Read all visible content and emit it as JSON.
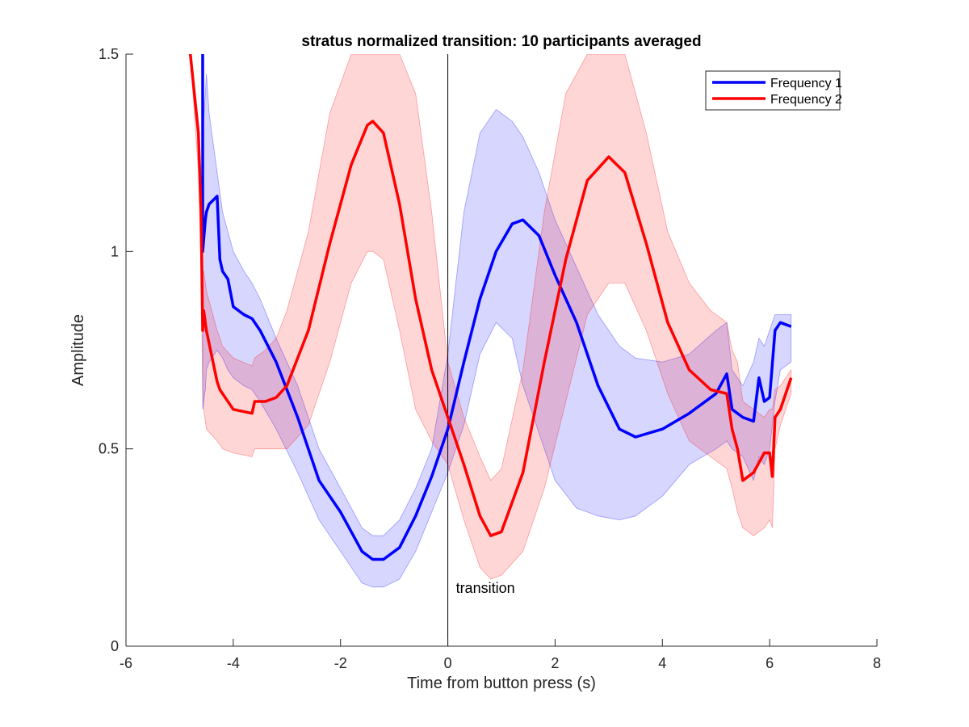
{
  "chart_data": {
    "type": "line",
    "title": "stratus normalized transition: 10 participants averaged",
    "xlabel": "Time from button press (s)",
    "ylabel": "Amplitude",
    "xlim": [
      -6,
      8
    ],
    "ylim": [
      0,
      1.5
    ],
    "xticks": [
      "-6",
      "-4",
      "-2",
      "0",
      "2",
      "4",
      "6",
      "8"
    ],
    "yticks": [
      "0",
      "0.5",
      "1",
      "1.5"
    ],
    "grid": false,
    "legend_position": "top-right",
    "annotation": {
      "text": "transition",
      "x": 0
    },
    "series": [
      {
        "name": "Frequency 1",
        "color": "#0000ff",
        "band_color": "#0000ff",
        "x": [
          -4.57,
          -4.57,
          -4.52,
          -4.5,
          -4.45,
          -4.3,
          -4.25,
          -4.2,
          -4.1,
          -4.0,
          -3.8,
          -3.65,
          -3.5,
          -3.2,
          -2.8,
          -2.4,
          -2.0,
          -1.6,
          -1.4,
          -1.2,
          -0.9,
          -0.6,
          -0.3,
          0.0,
          0.3,
          0.6,
          0.9,
          1.2,
          1.4,
          1.7,
          2.0,
          2.4,
          2.8,
          3.2,
          3.5,
          4.0,
          4.5,
          5.0,
          5.2,
          5.3,
          5.5,
          5.7,
          5.8,
          5.9,
          6.0,
          6.1,
          6.2,
          6.4
        ],
        "y": [
          1.5,
          1.0,
          1.08,
          1.1,
          1.12,
          1.14,
          0.98,
          0.95,
          0.93,
          0.86,
          0.84,
          0.83,
          0.8,
          0.72,
          0.58,
          0.42,
          0.34,
          0.24,
          0.22,
          0.22,
          0.25,
          0.33,
          0.43,
          0.55,
          0.72,
          0.88,
          1.0,
          1.07,
          1.08,
          1.04,
          0.94,
          0.82,
          0.66,
          0.55,
          0.53,
          0.55,
          0.59,
          0.64,
          0.69,
          0.6,
          0.58,
          0.57,
          0.68,
          0.62,
          0.63,
          0.8,
          0.82,
          0.81
        ],
        "upper": [
          1.5,
          1.3,
          1.4,
          1.45,
          1.35,
          1.2,
          1.15,
          1.1,
          1.05,
          1.0,
          0.95,
          0.92,
          0.88,
          0.78,
          0.66,
          0.5,
          0.4,
          0.3,
          0.28,
          0.28,
          0.32,
          0.4,
          0.5,
          0.74,
          1.1,
          1.3,
          1.36,
          1.33,
          1.29,
          1.2,
          1.08,
          0.96,
          0.84,
          0.76,
          0.73,
          0.72,
          0.74,
          0.8,
          0.82,
          0.7,
          0.66,
          0.72,
          0.78,
          0.76,
          0.8,
          0.84,
          0.84,
          0.84
        ],
        "lower": [
          0.6,
          0.6,
          0.65,
          0.7,
          0.72,
          0.75,
          0.74,
          0.73,
          0.7,
          0.68,
          0.66,
          0.65,
          0.62,
          0.55,
          0.44,
          0.32,
          0.24,
          0.16,
          0.15,
          0.15,
          0.17,
          0.24,
          0.34,
          0.44,
          0.56,
          0.74,
          0.82,
          0.78,
          0.66,
          0.54,
          0.42,
          0.35,
          0.33,
          0.32,
          0.33,
          0.38,
          0.46,
          0.5,
          0.52,
          0.5,
          0.48,
          0.42,
          0.48,
          0.46,
          0.5,
          0.62,
          0.7,
          0.72
        ]
      },
      {
        "name": "Frequency 2",
        "color": "#ff0000",
        "band_color": "#ff0000",
        "x": [
          -4.8,
          -4.65,
          -4.6,
          -4.57,
          -4.55,
          -4.5,
          -4.3,
          -4.25,
          -4.2,
          -4.0,
          -3.65,
          -3.6,
          -3.4,
          -3.2,
          -3.0,
          -2.6,
          -2.2,
          -1.8,
          -1.5,
          -1.4,
          -1.2,
          -0.9,
          -0.6,
          -0.3,
          0.0,
          0.3,
          0.6,
          0.8,
          1.0,
          1.4,
          1.8,
          2.2,
          2.6,
          3.0,
          3.3,
          3.7,
          4.1,
          4.5,
          4.9,
          5.2,
          5.3,
          5.4,
          5.5,
          5.7,
          5.9,
          6.0,
          6.05,
          6.1,
          6.2,
          6.4
        ],
        "y": [
          1.5,
          1.3,
          1.1,
          0.8,
          0.85,
          0.8,
          0.67,
          0.65,
          0.64,
          0.6,
          0.59,
          0.62,
          0.62,
          0.63,
          0.66,
          0.8,
          1.02,
          1.22,
          1.32,
          1.33,
          1.3,
          1.12,
          0.88,
          0.7,
          0.58,
          0.46,
          0.33,
          0.28,
          0.29,
          0.44,
          0.72,
          0.98,
          1.18,
          1.24,
          1.2,
          1.02,
          0.82,
          0.7,
          0.65,
          0.64,
          0.55,
          0.5,
          0.42,
          0.44,
          0.49,
          0.49,
          0.43,
          0.58,
          0.6,
          0.68
        ],
        "upper": [
          1.5,
          1.3,
          1.2,
          0.95,
          0.95,
          0.9,
          0.8,
          0.78,
          0.76,
          0.73,
          0.71,
          0.73,
          0.75,
          0.78,
          0.85,
          1.05,
          1.35,
          1.5,
          1.5,
          1.5,
          1.5,
          1.5,
          1.4,
          1.1,
          0.72,
          0.58,
          0.48,
          0.42,
          0.45,
          0.7,
          1.1,
          1.4,
          1.5,
          1.5,
          1.5,
          1.3,
          1.05,
          0.92,
          0.85,
          0.82,
          0.75,
          0.72,
          0.62,
          0.6,
          0.58,
          0.6,
          0.6,
          0.65,
          0.66,
          0.7
        ],
        "lower": [
          1.5,
          1.2,
          0.95,
          0.65,
          0.6,
          0.55,
          0.52,
          0.51,
          0.5,
          0.49,
          0.48,
          0.5,
          0.5,
          0.5,
          0.5,
          0.56,
          0.72,
          0.92,
          1.0,
          1.0,
          0.98,
          0.8,
          0.6,
          0.52,
          0.46,
          0.32,
          0.2,
          0.17,
          0.18,
          0.24,
          0.4,
          0.62,
          0.84,
          0.92,
          0.92,
          0.8,
          0.64,
          0.52,
          0.48,
          0.45,
          0.4,
          0.34,
          0.3,
          0.28,
          0.3,
          0.32,
          0.3,
          0.5,
          0.56,
          0.64
        ]
      }
    ]
  }
}
